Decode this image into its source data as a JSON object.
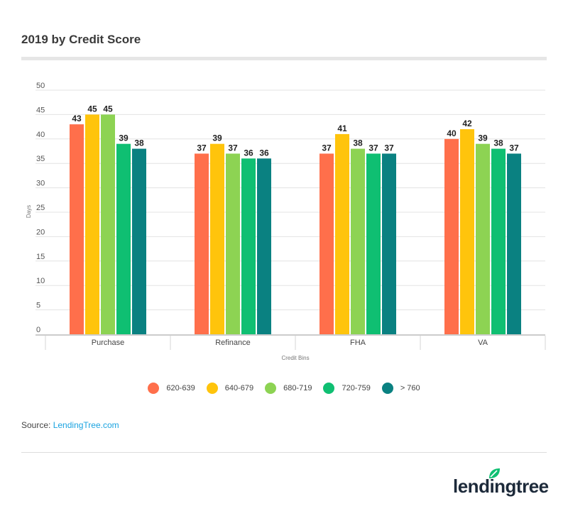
{
  "title": "2019 by Credit Score",
  "chart_data": {
    "type": "bar",
    "title": "2019 by Credit Score",
    "xlabel": "Credit Bins",
    "ylabel": "Days",
    "ylim": [
      0,
      50
    ],
    "yticks": [
      0,
      5,
      10,
      15,
      20,
      25,
      30,
      35,
      40,
      45,
      50
    ],
    "grid": true,
    "legend_position": "bottom",
    "categories": [
      "Purchase",
      "Refinance",
      "FHA",
      "VA"
    ],
    "series": [
      {
        "name": "620-639",
        "color": "#ff6f4b",
        "values": [
          43,
          37,
          37,
          40
        ]
      },
      {
        "name": "640-679",
        "color": "#ffc40c",
        "values": [
          45,
          39,
          41,
          42
        ]
      },
      {
        "name": "680-719",
        "color": "#8dd353",
        "values": [
          45,
          37,
          38,
          39
        ]
      },
      {
        "name": "720-759",
        "color": "#0fbf72",
        "values": [
          39,
          36,
          37,
          38
        ]
      },
      {
        "name": "> 760",
        "color": "#0a8181",
        "values": [
          38,
          36,
          37,
          37
        ]
      }
    ]
  },
  "source": {
    "label": "Source:",
    "link": "LendingTree.com",
    "link_color": "#1aa3e0"
  },
  "logo": {
    "text": "lendingtree",
    "leaf_color": "#0fbf72"
  }
}
